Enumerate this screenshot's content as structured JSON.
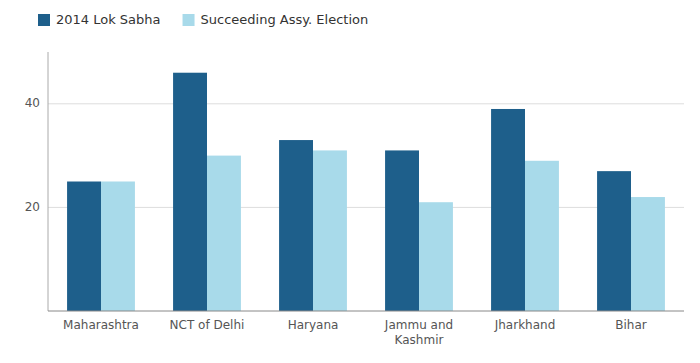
{
  "chart_data": {
    "type": "bar",
    "categories": [
      "Maharashtra",
      "NCT of Delhi",
      "Haryana",
      "Jammu and\nKashmir",
      "Jharkhand",
      "Bihar"
    ],
    "series": [
      {
        "name": "2014 Lok Sabha",
        "color": "#1e5f8b",
        "values": [
          25,
          46,
          33,
          31,
          39,
          27
        ]
      },
      {
        "name": "Succeeding Assy. Election",
        "color": "#a8daea",
        "values": [
          25,
          30,
          31,
          21,
          29,
          22
        ]
      }
    ],
    "ylim": [
      0,
      50
    ],
    "yticks": [
      20,
      40
    ],
    "grid": true,
    "legend": "top-left"
  }
}
